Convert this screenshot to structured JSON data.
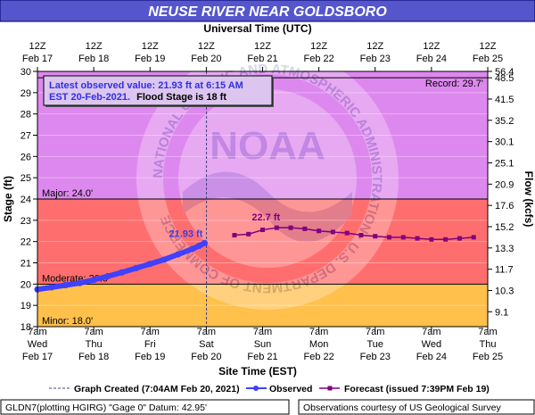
{
  "chart_data": {
    "type": "line",
    "title": "NEUSE RIVER NEAR GOLDSBORO",
    "top_axis_title": "Universal Time (UTC)",
    "bottom_axis_title": "Site Time (EST)",
    "ylabel": "Stage (ft)",
    "y2label": "Flow (kcfs)",
    "ylim": [
      18,
      30
    ],
    "xlim": [
      "2021-02-17 07:00",
      "2021-02-25 07:00"
    ],
    "y_ticks": [
      18,
      19,
      20,
      21,
      22,
      23,
      24,
      25,
      26,
      27,
      28,
      29,
      30
    ],
    "flow_ticks": [
      {
        "stage": 18.7,
        "label": "9.1"
      },
      {
        "stage": 19.7,
        "label": "10.3"
      },
      {
        "stage": 20.7,
        "label": "11.7"
      },
      {
        "stage": 21.7,
        "label": "13.3"
      },
      {
        "stage": 22.7,
        "label": "15.2"
      },
      {
        "stage": 23.7,
        "label": "17.6"
      },
      {
        "stage": 24.7,
        "label": "20.9"
      },
      {
        "stage": 25.7,
        "label": "25.1"
      },
      {
        "stage": 26.7,
        "label": "30.1"
      },
      {
        "stage": 27.7,
        "label": "35.2"
      },
      {
        "stage": 28.7,
        "label": "41.5"
      },
      {
        "stage": 29.7,
        "label": "48.5"
      },
      {
        "stage": 30.0,
        "label": "56.4"
      }
    ],
    "top_ticks": [
      {
        "l1": "12Z",
        "l2": "Feb 17"
      },
      {
        "l1": "12Z",
        "l2": "Feb 18"
      },
      {
        "l1": "12Z",
        "l2": "Feb 19"
      },
      {
        "l1": "12Z",
        "l2": "Feb 20"
      },
      {
        "l1": "12Z",
        "l2": "Feb 21"
      },
      {
        "l1": "12Z",
        "l2": "Feb 22"
      },
      {
        "l1": "12Z",
        "l2": "Feb 23"
      },
      {
        "l1": "12Z",
        "l2": "Feb 24"
      },
      {
        "l1": "12Z",
        "l2": "Feb 25"
      }
    ],
    "bottom_ticks": [
      {
        "l1": "7am",
        "l2": "Wed",
        "l3": "Feb 17"
      },
      {
        "l1": "7am",
        "l2": "Thu",
        "l3": "Feb 18"
      },
      {
        "l1": "7am",
        "l2": "Fri",
        "l3": "Feb 19"
      },
      {
        "l1": "7am",
        "l2": "Sat",
        "l3": "Feb 20"
      },
      {
        "l1": "7am",
        "l2": "Sun",
        "l3": "Feb 21"
      },
      {
        "l1": "7am",
        "l2": "Mon",
        "l3": "Feb 22"
      },
      {
        "l1": "7am",
        "l2": "Tue",
        "l3": "Feb 23"
      },
      {
        "l1": "7am",
        "l2": "Wed",
        "l3": "Feb 24"
      },
      {
        "l1": "7am",
        "l2": "Thu",
        "l3": "Feb 25"
      }
    ],
    "bands": [
      {
        "name": "below-minor",
        "from": 18,
        "to": 18,
        "color": "#ffffff"
      },
      {
        "name": "minor",
        "from": 18,
        "to": 20,
        "color": "#ffc04c"
      },
      {
        "name": "moderate",
        "from": 20,
        "to": 24,
        "color": "#ff6e6e"
      },
      {
        "name": "major",
        "from": 24,
        "to": 30,
        "color": "#dd88ee"
      }
    ],
    "thresholds": [
      {
        "label": "Minor: 18.0'",
        "stage": 18.0
      },
      {
        "label": "Moderate: 20.0'",
        "stage": 20.0
      },
      {
        "label": "Major: 24.0'",
        "stage": 24.0
      }
    ],
    "record": {
      "label": "Record: 29.7'",
      "stage": 29.7
    },
    "annotation": {
      "line1": "Latest observed value: 21.93 ft at 6:15 AM",
      "line2a": "EST 20-Feb-2021.",
      "line2b": "Flood Stage is 18 ft"
    },
    "latest_label": "21.93 ft",
    "crest_label": "22.7 ft",
    "graph_created_time": "2021-02-20 07:04",
    "series": [
      {
        "name": "Observed",
        "color": "#4040ff",
        "points": [
          [
            "2021-02-17 07:00",
            19.75
          ],
          [
            "2021-02-17 13:00",
            19.85
          ],
          [
            "2021-02-17 19:00",
            19.95
          ],
          [
            "2021-02-18 01:00",
            20.05
          ],
          [
            "2021-02-18 07:00",
            20.2
          ],
          [
            "2021-02-18 13:00",
            20.37
          ],
          [
            "2021-02-18 19:00",
            20.55
          ],
          [
            "2021-02-19 01:00",
            20.75
          ],
          [
            "2021-02-19 07:00",
            20.95
          ],
          [
            "2021-02-19 13:00",
            21.15
          ],
          [
            "2021-02-19 19:00",
            21.4
          ],
          [
            "2021-02-20 01:00",
            21.65
          ],
          [
            "2021-02-20 04:00",
            21.8
          ],
          [
            "2021-02-20 06:15",
            21.93
          ]
        ]
      },
      {
        "name": "Forecast (issued 7:39PM Feb 19)",
        "color": "#800080",
        "points": [
          [
            "2021-02-20 19:00",
            22.3
          ],
          [
            "2021-02-21 01:00",
            22.35
          ],
          [
            "2021-02-21 07:00",
            22.55
          ],
          [
            "2021-02-21 13:00",
            22.65
          ],
          [
            "2021-02-21 19:00",
            22.65
          ],
          [
            "2021-02-22 01:00",
            22.6
          ],
          [
            "2021-02-22 07:00",
            22.5
          ],
          [
            "2021-02-22 13:00",
            22.45
          ],
          [
            "2021-02-22 19:00",
            22.4
          ],
          [
            "2021-02-23 01:00",
            22.3
          ],
          [
            "2021-02-23 07:00",
            22.25
          ],
          [
            "2021-02-23 13:00",
            22.2
          ],
          [
            "2021-02-23 19:00",
            22.2
          ],
          [
            "2021-02-24 01:00",
            22.15
          ],
          [
            "2021-02-24 07:00",
            22.1
          ],
          [
            "2021-02-24 13:00",
            22.1
          ],
          [
            "2021-02-24 19:00",
            22.15
          ],
          [
            "2021-02-25 01:00",
            22.2
          ]
        ]
      }
    ],
    "legend": {
      "created": "Graph Created (7:04AM Feb 20, 2021)",
      "observed": "Observed",
      "forecast": "Forecast (issued 7:39PM Feb 19)"
    },
    "footer": {
      "left": "GLDN7(plotting HGIRG) \"Gage 0\" Datum: 42.95'",
      "right": "Observations courtesy of US Geological Survey"
    },
    "watermark": "NOAA",
    "watermark_ring": "NATIONAL OCEANIC AND ATMOSPHERIC ADMINISTRATION · U.S. DEPARTMENT OF COMMERCE"
  }
}
